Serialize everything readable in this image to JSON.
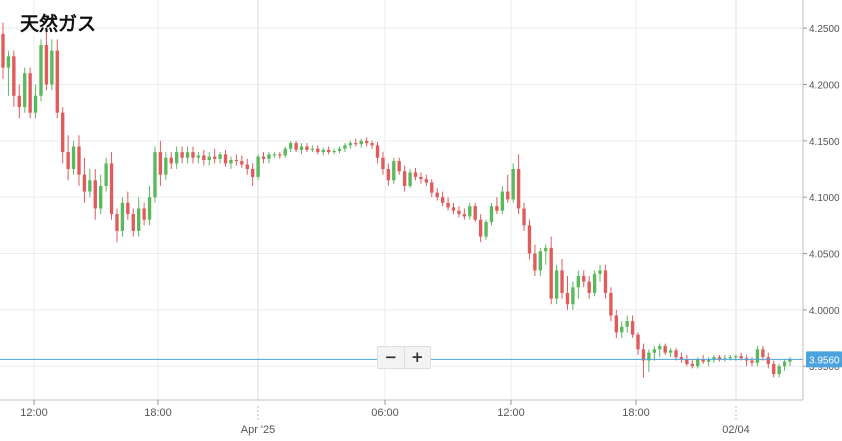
{
  "title": "天然ガス",
  "zoom": {
    "minus_label": "−",
    "plus_label": "+"
  },
  "colors": {
    "up": "#5cb85c",
    "down": "#e05b5b",
    "price_line": "#4aa3df",
    "grid": "#ececec",
    "axis_text": "#555555"
  },
  "chart_data": {
    "type": "candlestick",
    "title": "天然ガス",
    "ylim": [
      3.92,
      4.275
    ],
    "y_ticks": [
      "4.2500",
      "4.2000",
      "4.1500",
      "4.1000",
      "4.0500",
      "4.0000",
      "3.9500"
    ],
    "y_tick_values": [
      4.25,
      4.2,
      4.15,
      4.1,
      4.05,
      4.0,
      3.95
    ],
    "x_time_labels": [
      "12:00",
      "18:00",
      "06:00",
      "12:00",
      "18:00"
    ],
    "x_date_labels": [
      "Apr '25",
      "02/04"
    ],
    "current_price": 3.956,
    "current_price_label": "3.9560",
    "grid": true,
    "candles": [
      [
        4.245,
        4.255,
        4.205,
        4.215
      ],
      [
        4.215,
        4.23,
        4.19,
        4.225
      ],
      [
        4.225,
        4.23,
        4.18,
        4.19
      ],
      [
        4.19,
        4.2,
        4.17,
        4.18
      ],
      [
        4.18,
        4.215,
        4.175,
        4.21
      ],
      [
        4.21,
        4.215,
        4.17,
        4.175
      ],
      [
        4.175,
        4.2,
        4.17,
        4.19
      ],
      [
        4.19,
        4.24,
        4.185,
        4.235
      ],
      [
        4.235,
        4.25,
        4.195,
        4.2
      ],
      [
        4.2,
        4.24,
        4.195,
        4.23
      ],
      [
        4.23,
        4.24,
        4.17,
        4.175
      ],
      [
        4.175,
        4.18,
        4.13,
        4.14
      ],
      [
        4.14,
        4.155,
        4.115,
        4.125
      ],
      [
        4.125,
        4.15,
        4.12,
        4.145
      ],
      [
        4.145,
        4.155,
        4.11,
        4.12
      ],
      [
        4.12,
        4.135,
        4.095,
        4.105
      ],
      [
        4.105,
        4.125,
        4.1,
        4.115
      ],
      [
        4.115,
        4.125,
        4.08,
        4.09
      ],
      [
        4.09,
        4.12,
        4.085,
        4.11
      ],
      [
        4.11,
        4.135,
        4.105,
        4.13
      ],
      [
        4.13,
        4.14,
        4.08,
        4.085
      ],
      [
        4.085,
        4.09,
        4.06,
        4.07
      ],
      [
        4.07,
        4.1,
        4.065,
        4.095
      ],
      [
        4.095,
        4.105,
        4.08,
        4.085
      ],
      [
        4.085,
        4.09,
        4.065,
        4.07
      ],
      [
        4.07,
        4.1,
        4.065,
        4.09
      ],
      [
        4.09,
        4.095,
        4.075,
        4.08
      ],
      [
        4.08,
        4.11,
        4.075,
        4.1
      ],
      [
        4.1,
        4.145,
        4.095,
        4.14
      ],
      [
        4.14,
        4.15,
        4.11,
        4.12
      ],
      [
        4.12,
        4.14,
        4.115,
        4.135
      ],
      [
        4.135,
        4.14,
        4.125,
        4.13
      ],
      [
        4.13,
        4.145,
        4.125,
        4.14
      ],
      [
        4.14,
        4.145,
        4.13,
        4.135
      ],
      [
        4.135,
        4.145,
        4.13,
        4.14
      ],
      [
        4.14,
        4.145,
        4.13,
        4.135
      ],
      [
        4.135,
        4.14,
        4.13,
        4.137
      ],
      [
        4.137,
        4.142,
        4.128,
        4.133
      ],
      [
        4.133,
        4.14,
        4.128,
        4.136
      ],
      [
        4.136,
        4.143,
        4.13,
        4.134
      ],
      [
        4.134,
        4.14,
        4.13,
        4.138
      ],
      [
        4.138,
        4.142,
        4.127,
        4.13
      ],
      [
        4.13,
        4.136,
        4.125,
        4.133
      ],
      [
        4.133,
        4.138,
        4.128,
        4.132
      ],
      [
        4.132,
        4.137,
        4.126,
        4.129
      ],
      [
        4.129,
        4.134,
        4.12,
        4.125
      ],
      [
        4.125,
        4.13,
        4.11,
        4.118
      ],
      [
        4.118,
        4.138,
        4.115,
        4.136
      ],
      [
        4.136,
        4.14,
        4.13,
        4.134
      ],
      [
        4.134,
        4.14,
        4.13,
        4.138
      ],
      [
        4.138,
        4.14,
        4.135,
        4.138
      ],
      [
        4.138,
        4.14,
        4.134,
        4.137
      ],
      [
        4.137,
        4.145,
        4.135,
        4.143
      ],
      [
        4.143,
        4.15,
        4.14,
        4.148
      ],
      [
        4.148,
        4.15,
        4.14,
        4.142
      ],
      [
        4.142,
        4.148,
        4.138,
        4.145
      ],
      [
        4.145,
        4.148,
        4.14,
        4.142
      ],
      [
        4.142,
        4.146,
        4.14,
        4.143
      ],
      [
        4.143,
        4.146,
        4.138,
        4.14
      ],
      [
        4.14,
        4.144,
        4.137,
        4.142
      ],
      [
        4.142,
        4.145,
        4.138,
        4.14
      ],
      [
        4.14,
        4.143,
        4.138,
        4.141
      ],
      [
        4.141,
        4.145,
        4.139,
        4.143
      ],
      [
        4.143,
        4.148,
        4.14,
        4.146
      ],
      [
        4.146,
        4.15,
        4.143,
        4.148
      ],
      [
        4.148,
        4.152,
        4.145,
        4.147
      ],
      [
        4.147,
        4.152,
        4.144,
        4.15
      ],
      [
        4.15,
        4.153,
        4.145,
        4.148
      ],
      [
        4.148,
        4.15,
        4.143,
        4.146
      ],
      [
        4.146,
        4.149,
        4.13,
        4.135
      ],
      [
        4.135,
        4.14,
        4.12,
        4.125
      ],
      [
        4.125,
        4.13,
        4.11,
        4.115
      ],
      [
        4.115,
        4.135,
        4.112,
        4.132
      ],
      [
        4.132,
        4.135,
        4.12,
        4.123
      ],
      [
        4.123,
        4.128,
        4.105,
        4.11
      ],
      [
        4.11,
        4.125,
        4.108,
        4.122
      ],
      [
        4.122,
        4.126,
        4.115,
        4.118
      ],
      [
        4.118,
        4.122,
        4.112,
        4.116
      ],
      [
        4.116,
        4.12,
        4.11,
        4.113
      ],
      [
        4.113,
        4.116,
        4.1,
        4.104
      ],
      [
        4.104,
        4.108,
        4.097,
        4.1
      ],
      [
        4.1,
        4.105,
        4.092,
        4.095
      ],
      [
        4.095,
        4.1,
        4.088,
        4.091
      ],
      [
        4.091,
        4.095,
        4.085,
        4.088
      ],
      [
        4.088,
        4.092,
        4.082,
        4.085
      ],
      [
        4.085,
        4.09,
        4.08,
        4.083
      ],
      [
        4.083,
        4.095,
        4.08,
        4.092
      ],
      [
        4.092,
        4.095,
        4.078,
        4.08
      ],
      [
        4.08,
        4.085,
        4.06,
        4.065
      ],
      [
        4.065,
        4.08,
        4.062,
        4.078
      ],
      [
        4.078,
        4.095,
        4.075,
        4.092
      ],
      [
        4.092,
        4.1,
        4.085,
        4.088
      ],
      [
        4.088,
        4.11,
        4.085,
        4.105
      ],
      [
        4.105,
        4.12,
        4.095,
        4.098
      ],
      [
        4.098,
        4.13,
        4.095,
        4.125
      ],
      [
        4.125,
        4.138,
        4.085,
        4.09
      ],
      [
        4.09,
        4.095,
        4.07,
        4.075
      ],
      [
        4.075,
        4.08,
        4.045,
        4.05
      ],
      [
        4.05,
        4.058,
        4.03,
        4.035
      ],
      [
        4.035,
        4.055,
        4.03,
        4.052
      ],
      [
        4.052,
        4.058,
        4.04,
        4.055
      ],
      [
        4.055,
        4.065,
        4.005,
        4.01
      ],
      [
        4.01,
        4.04,
        4.005,
        4.035
      ],
      [
        4.035,
        4.045,
        4.01,
        4.015
      ],
      [
        4.015,
        4.03,
        4.0,
        4.005
      ],
      [
        4.005,
        4.025,
        4.0,
        4.02
      ],
      [
        4.02,
        4.035,
        4.01,
        4.03
      ],
      [
        4.03,
        4.035,
        4.02,
        4.025
      ],
      [
        4.025,
        4.03,
        4.01,
        4.015
      ],
      [
        4.015,
        4.035,
        4.012,
        4.032
      ],
      [
        4.032,
        4.04,
        4.025,
        4.035
      ],
      [
        4.035,
        4.04,
        4.01,
        4.015
      ],
      [
        4.015,
        4.02,
        3.99,
        3.995
      ],
      [
        3.995,
        4.0,
        3.975,
        3.98
      ],
      [
        3.98,
        3.99,
        3.975,
        3.985
      ],
      [
        3.985,
        3.995,
        3.98,
        3.99
      ],
      [
        3.99,
        3.995,
        3.975,
        3.978
      ],
      [
        3.978,
        3.98,
        3.96,
        3.965
      ],
      [
        3.965,
        3.97,
        3.94,
        3.955
      ],
      [
        3.955,
        3.965,
        3.945,
        3.962
      ],
      [
        3.962,
        3.968,
        3.955,
        3.965
      ],
      [
        3.965,
        3.97,
        3.958,
        3.968
      ],
      [
        3.968,
        3.97,
        3.96,
        3.962
      ],
      [
        3.962,
        3.966,
        3.958,
        3.964
      ],
      [
        3.964,
        3.966,
        3.955,
        3.958
      ],
      [
        3.958,
        3.962,
        3.953,
        3.956
      ],
      [
        3.956,
        3.96,
        3.95,
        3.952
      ],
      [
        3.952,
        3.956,
        3.948,
        3.95
      ],
      [
        3.95,
        3.958,
        3.948,
        3.956
      ],
      [
        3.956,
        3.96,
        3.952,
        3.954
      ],
      [
        3.954,
        3.958,
        3.95,
        3.956
      ],
      [
        3.956,
        3.96,
        3.953,
        3.958
      ],
      [
        3.958,
        3.96,
        3.954,
        3.956
      ],
      [
        3.956,
        3.96,
        3.954,
        3.957
      ],
      [
        3.957,
        3.96,
        3.955,
        3.958
      ],
      [
        3.958,
        3.96,
        3.955,
        3.959
      ],
      [
        3.959,
        3.962,
        3.955,
        3.957
      ],
      [
        3.957,
        3.96,
        3.95,
        3.955
      ],
      [
        3.955,
        3.958,
        3.95,
        3.953
      ],
      [
        3.953,
        3.968,
        3.95,
        3.965
      ],
      [
        3.965,
        3.968,
        3.955,
        3.958
      ],
      [
        3.958,
        3.962,
        3.948,
        3.952
      ],
      [
        3.952,
        3.955,
        3.94,
        3.943
      ],
      [
        3.943,
        3.952,
        3.94,
        3.95
      ],
      [
        3.95,
        3.956,
        3.946,
        3.954
      ],
      [
        3.954,
        3.958,
        3.95,
        3.956
      ]
    ]
  }
}
